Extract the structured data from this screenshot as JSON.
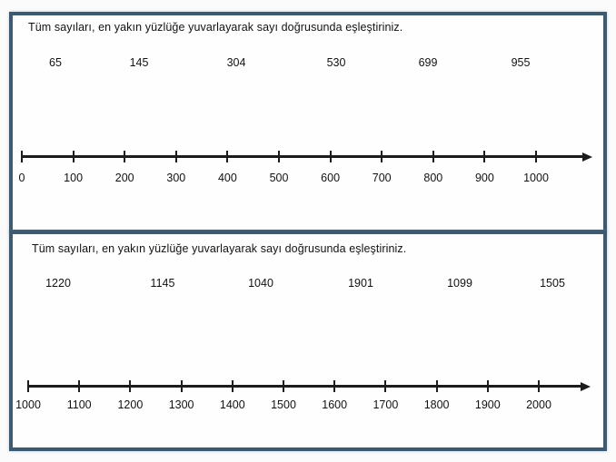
{
  "colors": {
    "frame_border": "#3c5a72",
    "line": "#1c1c1c",
    "text": "#121212",
    "page_background": "#fbfbfb"
  },
  "panels": [
    {
      "instruction": "Tüm sayıları, en yakın yüzlüğe yuvarlayarak sayı doğrusunda eşleştiriniz.",
      "numbers": [
        "65",
        "145",
        "304",
        "530",
        "699",
        "955"
      ],
      "number_line": {
        "tick_labels": [
          "0",
          "100",
          "200",
          "300",
          "400",
          "500",
          "600",
          "700",
          "800",
          "900",
          "1000"
        ],
        "range": [
          0,
          1000
        ],
        "step": 100
      }
    },
    {
      "instruction": "Tüm sayıları, en yakın yüzlüğe yuvarlayarak sayı doğrusunda eşleştiriniz.",
      "numbers": [
        "1220",
        "1145",
        "1040",
        "1901",
        "1099",
        "1505"
      ],
      "number_line": {
        "tick_labels": [
          "1000",
          "1100",
          "1200",
          "1300",
          "1400",
          "1500",
          "1600",
          "1700",
          "1800",
          "1900",
          "2000"
        ],
        "range": [
          1000,
          2000
        ],
        "step": 100
      }
    }
  ]
}
